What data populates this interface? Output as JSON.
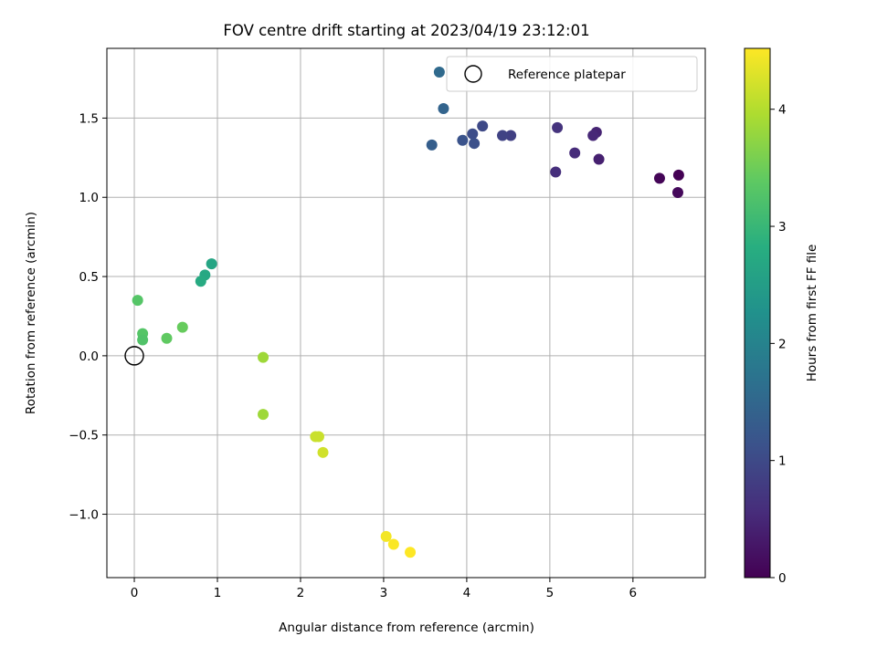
{
  "chart_data": {
    "type": "scatter",
    "title": "FOV centre drift starting at 2023/04/19 23:12:01",
    "xlabel": "Angular distance from reference (arcmin)",
    "ylabel": "Rotation from reference (arcmin)",
    "xlim": [
      -0.33,
      6.87
    ],
    "ylim": [
      -1.4,
      1.94
    ],
    "xticks": [
      0,
      1,
      2,
      3,
      4,
      5,
      6
    ],
    "yticks": [
      -1.0,
      -0.5,
      0.0,
      0.5,
      1.0,
      1.5
    ],
    "ytick_labels": [
      "−1.0",
      "−0.5",
      "0.0",
      "0.5",
      "1.0",
      "1.5"
    ],
    "grid": true,
    "legend": {
      "placement": "top-right",
      "entries": [
        "Reference platepar"
      ]
    },
    "reference_point": {
      "name": "Reference platepar",
      "x": 0.0,
      "y": 0.0
    },
    "colorbar": {
      "label": "Hours from first FF file",
      "colormap": "viridis",
      "range": [
        0,
        4.52
      ],
      "ticks": [
        0,
        1,
        2,
        3,
        4
      ]
    },
    "points": [
      {
        "x": 6.55,
        "y": 1.14,
        "c": 0.0
      },
      {
        "x": 6.32,
        "y": 1.12,
        "c": 0.05
      },
      {
        "x": 6.54,
        "y": 1.03,
        "c": 0.1
      },
      {
        "x": 5.59,
        "y": 1.24,
        "c": 0.4
      },
      {
        "x": 5.56,
        "y": 1.41,
        "c": 0.45
      },
      {
        "x": 5.52,
        "y": 1.39,
        "c": 0.5
      },
      {
        "x": 5.3,
        "y": 1.28,
        "c": 0.55
      },
      {
        "x": 5.07,
        "y": 1.16,
        "c": 0.6
      },
      {
        "x": 5.09,
        "y": 1.44,
        "c": 0.65
      },
      {
        "x": 4.53,
        "y": 1.39,
        "c": 0.85
      },
      {
        "x": 4.43,
        "y": 1.39,
        "c": 0.9
      },
      {
        "x": 4.19,
        "y": 1.45,
        "c": 1.0
      },
      {
        "x": 4.07,
        "y": 1.4,
        "c": 1.05
      },
      {
        "x": 4.09,
        "y": 1.34,
        "c": 1.1
      },
      {
        "x": 3.95,
        "y": 1.36,
        "c": 1.15
      },
      {
        "x": 3.58,
        "y": 1.33,
        "c": 1.35
      },
      {
        "x": 3.72,
        "y": 1.56,
        "c": 1.45
      },
      {
        "x": 3.67,
        "y": 1.79,
        "c": 1.55
      },
      {
        "x": 0.93,
        "y": 0.58,
        "c": 2.65
      },
      {
        "x": 0.85,
        "y": 0.51,
        "c": 2.7
      },
      {
        "x": 0.8,
        "y": 0.47,
        "c": 2.75
      },
      {
        "x": 0.04,
        "y": 0.35,
        "c": 3.3
      },
      {
        "x": 0.1,
        "y": 0.14,
        "c": 3.3
      },
      {
        "x": 0.1,
        "y": 0.1,
        "c": 3.25
      },
      {
        "x": 0.39,
        "y": 0.11,
        "c": 3.4
      },
      {
        "x": 0.58,
        "y": 0.18,
        "c": 3.45
      },
      {
        "x": 1.55,
        "y": -0.01,
        "c": 3.85
      },
      {
        "x": 1.55,
        "y": -0.37,
        "c": 3.85
      },
      {
        "x": 2.18,
        "y": -0.51,
        "c": 4.15
      },
      {
        "x": 2.22,
        "y": -0.51,
        "c": 4.15
      },
      {
        "x": 2.27,
        "y": -0.61,
        "c": 4.2
      },
      {
        "x": 3.03,
        "y": -1.14,
        "c": 4.45
      },
      {
        "x": 3.12,
        "y": -1.19,
        "c": 4.5
      },
      {
        "x": 3.32,
        "y": -1.24,
        "c": 4.52
      }
    ]
  }
}
